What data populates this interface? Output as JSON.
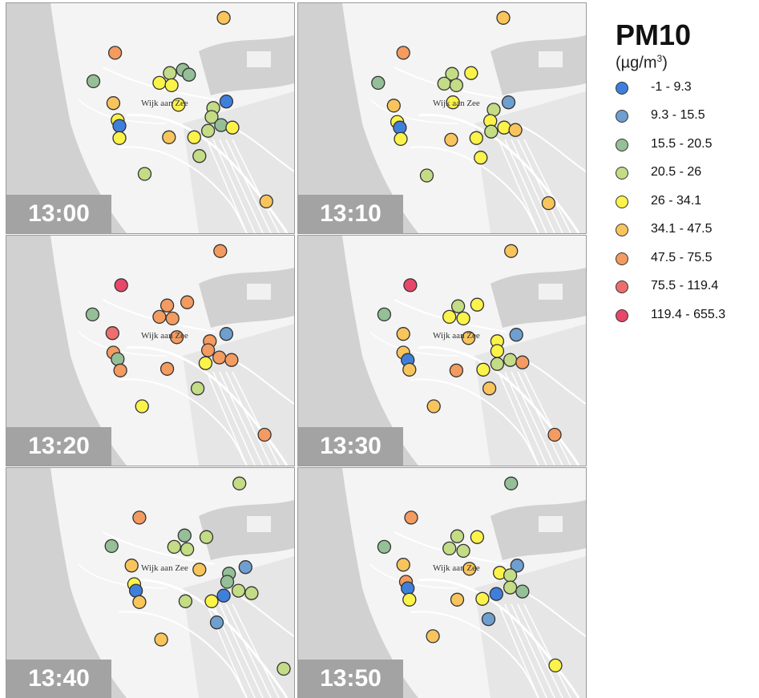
{
  "legend": {
    "title": "PM10",
    "unit_prefix": "(µg/m",
    "unit_sup": "3",
    "unit_suffix": ")",
    "classes": [
      {
        "label": "-1 - 9.3",
        "color": "#3f7fdc"
      },
      {
        "label": "9.3 - 15.5",
        "color": "#6e9fcf"
      },
      {
        "label": "15.5 - 20.5",
        "color": "#94bf97"
      },
      {
        "label": "20.5 - 26",
        "color": "#c3dc85"
      },
      {
        "label": "26 - 34.1",
        "color": "#fbf34a"
      },
      {
        "label": "34.1 - 47.5",
        "color": "#f8c45c"
      },
      {
        "label": "47.5 - 75.5",
        "color": "#f39b60"
      },
      {
        "label": "75.5 - 119.4",
        "color": "#ee6e6e"
      },
      {
        "label": "119.4 - 655.3",
        "color": "#e8476a"
      }
    ]
  },
  "map": {
    "town_label": "Wijk aan Zee"
  },
  "panels": [
    {
      "time": "13:00",
      "stations": [
        {
          "x": 250,
          "y": 18,
          "c": 5
        },
        {
          "x": 125,
          "y": 61,
          "c": 6
        },
        {
          "x": 203,
          "y": 82,
          "c": 2
        },
        {
          "x": 100,
          "y": 96,
          "c": 2
        },
        {
          "x": 188,
          "y": 86,
          "c": 3
        },
        {
          "x": 176,
          "y": 98,
          "c": 4
        },
        {
          "x": 190,
          "y": 101,
          "c": 4
        },
        {
          "x": 210,
          "y": 88,
          "c": 2
        },
        {
          "x": 198,
          "y": 125,
          "c": 4
        },
        {
          "x": 123,
          "y": 123,
          "c": 5
        },
        {
          "x": 253,
          "y": 121,
          "c": 0
        },
        {
          "x": 238,
          "y": 129,
          "c": 3
        },
        {
          "x": 236,
          "y": 140,
          "c": 3
        },
        {
          "x": 128,
          "y": 144,
          "c": 4
        },
        {
          "x": 130,
          "y": 151,
          "c": 0
        },
        {
          "x": 130,
          "y": 166,
          "c": 4
        },
        {
          "x": 187,
          "y": 165,
          "c": 5
        },
        {
          "x": 216,
          "y": 165,
          "c": 4
        },
        {
          "x": 232,
          "y": 157,
          "c": 3
        },
        {
          "x": 247,
          "y": 150,
          "c": 2
        },
        {
          "x": 260,
          "y": 153,
          "c": 4
        },
        {
          "x": 222,
          "y": 188,
          "c": 3
        },
        {
          "x": 159,
          "y": 210,
          "c": 3
        },
        {
          "x": 299,
          "y": 244,
          "c": 5
        }
      ]
    },
    {
      "time": "13:10",
      "stations": [
        {
          "x": 236,
          "y": 18,
          "c": 5
        },
        {
          "x": 121,
          "y": 61,
          "c": 6
        },
        {
          "x": 177,
          "y": 87,
          "c": 3
        },
        {
          "x": 199,
          "y": 86,
          "c": 4
        },
        {
          "x": 92,
          "y": 98,
          "c": 2
        },
        {
          "x": 168,
          "y": 99,
          "c": 3
        },
        {
          "x": 182,
          "y": 101,
          "c": 3
        },
        {
          "x": 110,
          "y": 126,
          "c": 5
        },
        {
          "x": 178,
          "y": 122,
          "c": 4
        },
        {
          "x": 242,
          "y": 122,
          "c": 1
        },
        {
          "x": 225,
          "y": 131,
          "c": 3
        },
        {
          "x": 221,
          "y": 145,
          "c": 4
        },
        {
          "x": 114,
          "y": 146,
          "c": 4
        },
        {
          "x": 117,
          "y": 153,
          "c": 0
        },
        {
          "x": 118,
          "y": 167,
          "c": 4
        },
        {
          "x": 176,
          "y": 168,
          "c": 5
        },
        {
          "x": 205,
          "y": 166,
          "c": 4
        },
        {
          "x": 222,
          "y": 158,
          "c": 3
        },
        {
          "x": 237,
          "y": 153,
          "c": 4
        },
        {
          "x": 250,
          "y": 156,
          "c": 5
        },
        {
          "x": 210,
          "y": 190,
          "c": 4
        },
        {
          "x": 148,
          "y": 212,
          "c": 3
        },
        {
          "x": 288,
          "y": 246,
          "c": 5
        }
      ]
    },
    {
      "time": "13:20",
      "stations": [
        {
          "x": 246,
          "y": 19,
          "c": 6
        },
        {
          "x": 132,
          "y": 61,
          "c": 8
        },
        {
          "x": 208,
          "y": 82,
          "c": 6
        },
        {
          "x": 99,
          "y": 97,
          "c": 2
        },
        {
          "x": 185,
          "y": 86,
          "c": 6
        },
        {
          "x": 176,
          "y": 100,
          "c": 6
        },
        {
          "x": 191,
          "y": 102,
          "c": 6
        },
        {
          "x": 196,
          "y": 125,
          "c": 6
        },
        {
          "x": 122,
          "y": 120,
          "c": 7
        },
        {
          "x": 253,
          "y": 121,
          "c": 1
        },
        {
          "x": 234,
          "y": 130,
          "c": 6
        },
        {
          "x": 232,
          "y": 141,
          "c": 6
        },
        {
          "x": 123,
          "y": 144,
          "c": 6
        },
        {
          "x": 128,
          "y": 152,
          "c": 2
        },
        {
          "x": 131,
          "y": 166,
          "c": 6
        },
        {
          "x": 185,
          "y": 164,
          "c": 6
        },
        {
          "x": 229,
          "y": 157,
          "c": 4
        },
        {
          "x": 245,
          "y": 150,
          "c": 6
        },
        {
          "x": 259,
          "y": 153,
          "c": 6
        },
        {
          "x": 220,
          "y": 188,
          "c": 3
        },
        {
          "x": 156,
          "y": 210,
          "c": 4
        },
        {
          "x": 297,
          "y": 245,
          "c": 6
        }
      ]
    },
    {
      "time": "13:30",
      "stations": [
        {
          "x": 245,
          "y": 19,
          "c": 5
        },
        {
          "x": 129,
          "y": 61,
          "c": 8
        },
        {
          "x": 206,
          "y": 85,
          "c": 4
        },
        {
          "x": 184,
          "y": 87,
          "c": 3
        },
        {
          "x": 99,
          "y": 97,
          "c": 2
        },
        {
          "x": 174,
          "y": 100,
          "c": 4
        },
        {
          "x": 190,
          "y": 102,
          "c": 4
        },
        {
          "x": 196,
          "y": 126,
          "c": 5
        },
        {
          "x": 121,
          "y": 121,
          "c": 5
        },
        {
          "x": 251,
          "y": 122,
          "c": 1
        },
        {
          "x": 229,
          "y": 130,
          "c": 4
        },
        {
          "x": 229,
          "y": 142,
          "c": 4
        },
        {
          "x": 121,
          "y": 144,
          "c": 5
        },
        {
          "x": 126,
          "y": 153,
          "c": 0
        },
        {
          "x": 128,
          "y": 165,
          "c": 5
        },
        {
          "x": 182,
          "y": 166,
          "c": 6
        },
        {
          "x": 213,
          "y": 165,
          "c": 4
        },
        {
          "x": 229,
          "y": 158,
          "c": 3
        },
        {
          "x": 244,
          "y": 153,
          "c": 3
        },
        {
          "x": 258,
          "y": 156,
          "c": 6
        },
        {
          "x": 220,
          "y": 188,
          "c": 5
        },
        {
          "x": 156,
          "y": 210,
          "c": 5
        },
        {
          "x": 295,
          "y": 245,
          "c": 6
        }
      ]
    },
    {
      "time": "13:40",
      "stations": [
        {
          "x": 268,
          "y": 19,
          "c": 3
        },
        {
          "x": 153,
          "y": 61,
          "c": 6
        },
        {
          "x": 205,
          "y": 83,
          "c": 2
        },
        {
          "x": 121,
          "y": 96,
          "c": 2
        },
        {
          "x": 230,
          "y": 85,
          "c": 3
        },
        {
          "x": 193,
          "y": 97,
          "c": 3
        },
        {
          "x": 208,
          "y": 100,
          "c": 3
        },
        {
          "x": 222,
          "y": 125,
          "c": 5
        },
        {
          "x": 144,
          "y": 120,
          "c": 5
        },
        {
          "x": 275,
          "y": 122,
          "c": 1
        },
        {
          "x": 256,
          "y": 130,
          "c": 2
        },
        {
          "x": 254,
          "y": 140,
          "c": 2
        },
        {
          "x": 147,
          "y": 143,
          "c": 4
        },
        {
          "x": 149,
          "y": 151,
          "c": 0
        },
        {
          "x": 153,
          "y": 165,
          "c": 5
        },
        {
          "x": 206,
          "y": 164,
          "c": 3
        },
        {
          "x": 236,
          "y": 164,
          "c": 4
        },
        {
          "x": 250,
          "y": 157,
          "c": 0
        },
        {
          "x": 267,
          "y": 151,
          "c": 3
        },
        {
          "x": 282,
          "y": 154,
          "c": 3
        },
        {
          "x": 242,
          "y": 190,
          "c": 1
        },
        {
          "x": 178,
          "y": 211,
          "c": 5
        },
        {
          "x": 319,
          "y": 247,
          "c": 3
        }
      ]
    },
    {
      "time": "13:50",
      "stations": [
        {
          "x": 245,
          "y": 19,
          "c": 2
        },
        {
          "x": 130,
          "y": 61,
          "c": 6
        },
        {
          "x": 183,
          "y": 84,
          "c": 3
        },
        {
          "x": 206,
          "y": 85,
          "c": 4
        },
        {
          "x": 99,
          "y": 97,
          "c": 2
        },
        {
          "x": 174,
          "y": 99,
          "c": 3
        },
        {
          "x": 190,
          "y": 102,
          "c": 3
        },
        {
          "x": 197,
          "y": 124,
          "c": 5
        },
        {
          "x": 121,
          "y": 119,
          "c": 5
        },
        {
          "x": 252,
          "y": 120,
          "c": 1
        },
        {
          "x": 232,
          "y": 129,
          "c": 4
        },
        {
          "x": 244,
          "y": 132,
          "c": 3
        },
        {
          "x": 124,
          "y": 140,
          "c": 6
        },
        {
          "x": 126,
          "y": 148,
          "c": 0
        },
        {
          "x": 128,
          "y": 162,
          "c": 4
        },
        {
          "x": 183,
          "y": 162,
          "c": 5
        },
        {
          "x": 212,
          "y": 161,
          "c": 4
        },
        {
          "x": 228,
          "y": 155,
          "c": 0
        },
        {
          "x": 244,
          "y": 147,
          "c": 3
        },
        {
          "x": 258,
          "y": 152,
          "c": 2
        },
        {
          "x": 219,
          "y": 186,
          "c": 1
        },
        {
          "x": 155,
          "y": 207,
          "c": 5
        },
        {
          "x": 296,
          "y": 243,
          "c": 4
        }
      ]
    }
  ]
}
